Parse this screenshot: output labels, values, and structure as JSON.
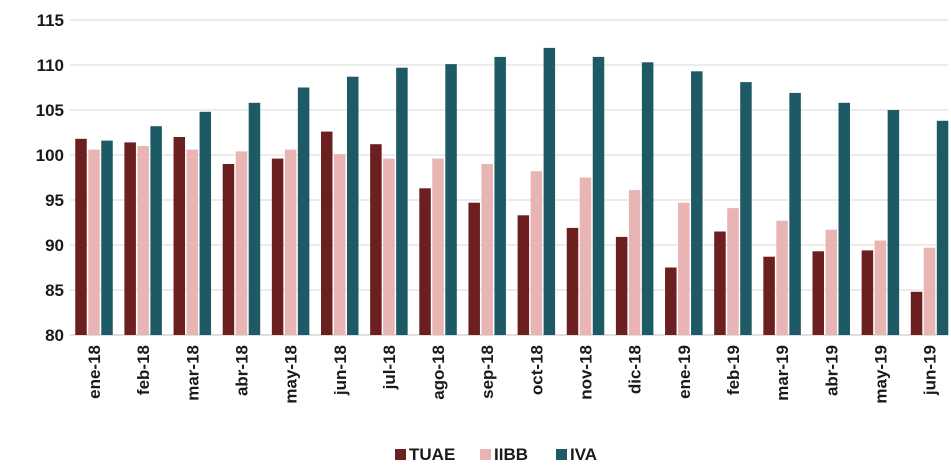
{
  "chart_data": {
    "type": "bar",
    "title": "",
    "xlabel": "",
    "ylabel": "",
    "ylim": [
      80,
      115
    ],
    "yticks": [
      80,
      85,
      90,
      95,
      100,
      105,
      110,
      115
    ],
    "grid": true,
    "legend_position": "bottom-center",
    "categories": [
      "ene-18",
      "feb-18",
      "mar-18",
      "abr-18",
      "may-18",
      "jun-18",
      "jul-18",
      "ago-18",
      "sep-18",
      "oct-18",
      "nov-18",
      "dic-18",
      "ene-19",
      "feb-19",
      "mar-19",
      "abr-19",
      "may-19",
      "jun-19"
    ],
    "series": [
      {
        "name": "TUAE",
        "color": "#6b1f1f",
        "values": [
          101.8,
          101.4,
          102.0,
          99.0,
          99.6,
          102.6,
          101.2,
          96.3,
          94.7,
          93.3,
          91.9,
          90.9,
          87.5,
          91.5,
          88.7,
          89.3,
          89.4,
          84.8
        ]
      },
      {
        "name": "IIBB",
        "color": "#e8b4b4",
        "values": [
          100.6,
          101.0,
          100.6,
          100.4,
          100.6,
          100.1,
          99.6,
          99.6,
          99.0,
          98.2,
          97.5,
          96.1,
          94.7,
          94.1,
          92.7,
          91.7,
          90.5,
          89.7
        ]
      },
      {
        "name": "IVA",
        "color": "#1e5a66",
        "values": [
          101.6,
          103.2,
          104.8,
          105.8,
          107.5,
          108.7,
          109.7,
          110.1,
          110.9,
          111.9,
          110.9,
          110.3,
          109.3,
          108.1,
          106.9,
          105.8,
          105.0,
          103.8
        ]
      }
    ]
  }
}
